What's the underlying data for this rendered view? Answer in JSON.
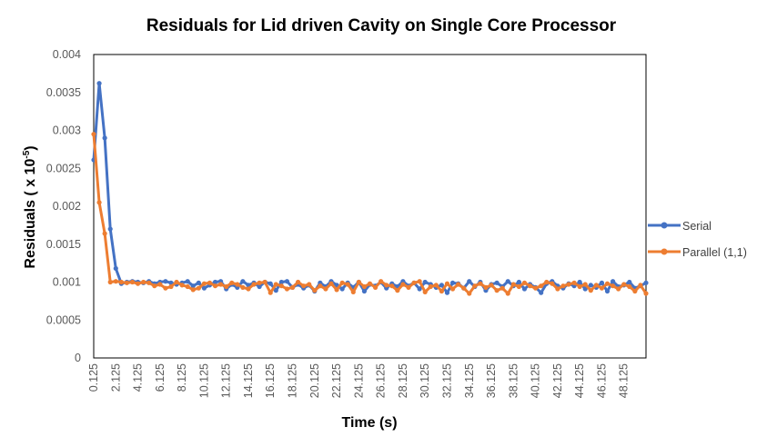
{
  "chart_data": {
    "type": "line",
    "title": "Residuals for Lid driven Cavity on Single Core Processor",
    "xlabel": "Time (s)",
    "ylabel": "Residuals ( x 10",
    "ylabel_exponent": "-5",
    "ylabel_close": ")",
    "ylim": [
      0,
      0.004
    ],
    "yticks": [
      "0",
      "0.0005",
      "0.001",
      "0.0015",
      "0.002",
      "0.0025",
      "0.003",
      "0.0035",
      "0.004"
    ],
    "x_start": 0.125,
    "x_step": 0.5,
    "xtick_every": 4,
    "xticks": [
      "0.125",
      "2.125",
      "4.125",
      "6.125",
      "8.125",
      "10.125",
      "12.125",
      "14.125",
      "16.125",
      "18.125",
      "20.125",
      "22.125",
      "24.125",
      "26.125",
      "28.125",
      "30.125",
      "32.125",
      "34.125",
      "36.125",
      "38.125",
      "40.125",
      "42.125",
      "44.125",
      "46.125",
      "48.125"
    ],
    "grid": false,
    "legend": "right",
    "series": [
      {
        "name": "Serial",
        "color": "#4472C4",
        "values": [
          0.00261,
          0.00362,
          0.0029,
          0.0017,
          0.00118,
          0.00098,
          0.001,
          0.00101,
          0.001,
          0.00099,
          0.00101,
          0.00098,
          0.001,
          0.00101,
          0.00099,
          0.00097,
          0.00099,
          0.00101,
          0.00095,
          0.00099,
          0.00092,
          0.00096,
          0.001,
          0.00101,
          0.00091,
          0.00097,
          0.00093,
          0.00101,
          0.00096,
          0.00099,
          0.00094,
          0.001,
          0.00098,
          0.00089,
          0.001,
          0.00101,
          0.00093,
          0.00097,
          0.00092,
          0.00096,
          0.00088,
          0.00099,
          0.00094,
          0.00101,
          0.00096,
          0.00091,
          0.00099,
          0.00093,
          0.001,
          0.00088,
          0.00097,
          0.00095,
          0.001,
          0.00092,
          0.00098,
          0.00094,
          0.00101,
          0.00095,
          0.00099,
          0.00091,
          0.001,
          0.00097,
          0.00093,
          0.00096,
          0.00086,
          0.00099,
          0.00098,
          0.00092,
          0.00101,
          0.00094,
          0.001,
          0.00089,
          0.00097,
          0.00099,
          0.00094,
          0.00101,
          0.00095,
          0.001,
          0.00091,
          0.00097,
          0.00093,
          0.00086,
          0.00098,
          0.00101,
          0.00095,
          0.00092,
          0.00098,
          0.00095,
          0.001,
          0.00091,
          0.00096,
          0.00093,
          0.00099,
          0.00088,
          0.00101,
          0.00094,
          0.00096,
          0.001,
          0.00092,
          0.00095,
          0.00099
        ]
      },
      {
        "name": "Parallel (1,1)",
        "color": "#ED7D31",
        "values": [
          0.00295,
          0.00205,
          0.00164,
          0.001,
          0.00101,
          0.001,
          0.00099,
          0.001,
          0.00098,
          0.001,
          0.00099,
          0.00095,
          0.00097,
          0.00092,
          0.00094,
          0.001,
          0.00096,
          0.00094,
          0.0009,
          0.00092,
          0.00098,
          0.00099,
          0.00095,
          0.00097,
          0.00094,
          0.00099,
          0.00097,
          0.00093,
          0.00091,
          0.00097,
          0.00099,
          0.001,
          0.00086,
          0.00097,
          0.00095,
          0.00091,
          0.00093,
          0.001,
          0.00095,
          0.00097,
          0.00089,
          0.00095,
          0.00091,
          0.00098,
          0.0009,
          0.00099,
          0.00097,
          0.00087,
          0.001,
          0.00094,
          0.00098,
          0.00093,
          0.00101,
          0.00096,
          0.00095,
          0.00089,
          0.00097,
          0.00093,
          0.00099,
          0.00101,
          0.00087,
          0.00094,
          0.00096,
          0.00088,
          0.00098,
          0.00091,
          0.00097,
          0.00092,
          0.00085,
          0.00095,
          0.00098,
          0.00093,
          0.00096,
          0.00089,
          0.00092,
          0.00085,
          0.00097,
          0.00094,
          0.00099,
          0.00095,
          0.00092,
          0.00095,
          0.001,
          0.00098,
          0.00091,
          0.00095,
          0.00097,
          0.00099,
          0.00094,
          0.00097,
          0.00089,
          0.00096,
          0.00092,
          0.00098,
          0.00095,
          0.00091,
          0.00097,
          0.00094,
          0.00088,
          0.00096,
          0.00085
        ]
      }
    ]
  }
}
